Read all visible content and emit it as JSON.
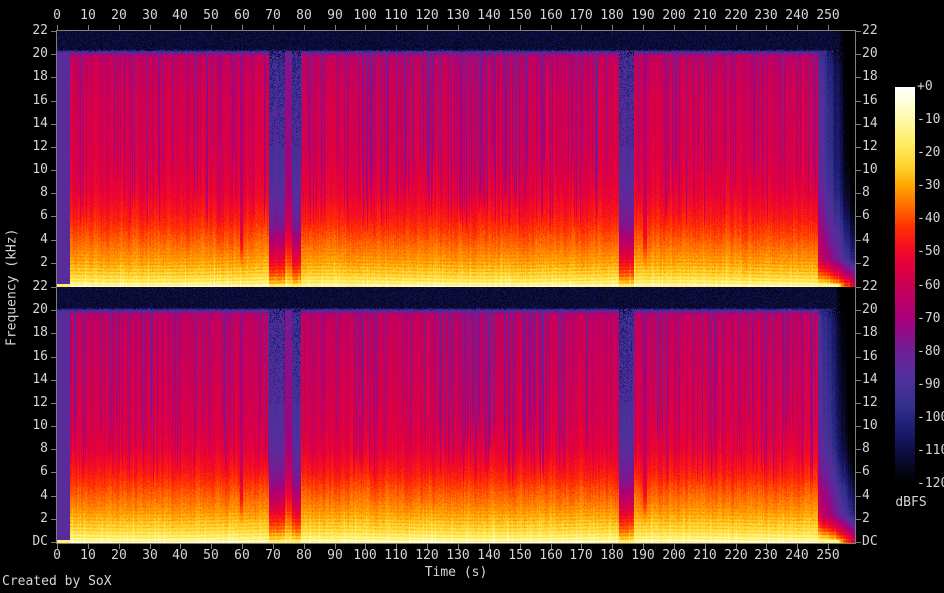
{
  "meta": {
    "creator": "Created by SoX"
  },
  "chart_data": {
    "type": "heatmap",
    "subtype": "audio-spectrogram-stereo",
    "title": "",
    "xlabel": "Time (s)",
    "ylabel": "Frequency (kHz)",
    "panels": [
      "channel-1-top",
      "channel-2-bottom"
    ],
    "x_range_s": [
      0,
      258
    ],
    "x_ticks": [
      0,
      10,
      20,
      30,
      40,
      50,
      60,
      70,
      80,
      90,
      100,
      110,
      120,
      130,
      140,
      150,
      160,
      170,
      180,
      190,
      200,
      210,
      220,
      230,
      240,
      250
    ],
    "y_range_khz": [
      0,
      22
    ],
    "y_tick_values_khz": [
      22,
      20,
      18,
      16,
      14,
      12,
      10,
      8,
      6,
      4,
      2
    ],
    "y_dc_label": "DC",
    "colorbar": {
      "unit": "dBFS",
      "range_db": [
        0,
        -120
      ],
      "ticks": [
        "+0",
        "-10",
        "-20",
        "-30",
        "-40",
        "-50",
        "-60",
        "-70",
        "-80",
        "-90",
        "-100",
        "-110",
        "-120"
      ]
    },
    "legend_position": "right",
    "grid": false,
    "features": [
      "near-silent intro ~0-4 s (floor ~ -86 dBFS)",
      "continuous broadband music ~4-247 s, lowpassed near 20.3 kHz",
      "quiet breaks ~68.5-79 s (split by a short burst ~74-76 s) and ~182-187 s",
      "brief dips near 59 s and 190 s",
      "fade-out from ~247 s to end of file",
      "bright full-scale low-frequency/DC line along the bottom of each channel",
      "energy decreases with frequency: ~-10 dBFS near DC to ~-60 dBFS near 19 kHz"
    ]
  },
  "render": {
    "seed": 1337,
    "duration_s": 258.7,
    "stripe_p": 0.17,
    "texture_ranges": [
      {
        "t0": 133,
        "t1": 158,
        "p": 0.5
      },
      {
        "t0": 96,
        "t1": 133,
        "p": 0.28
      }
    ],
    "cutoff_khz": [
      20.45,
      20.25
    ],
    "profiles": [
      [
        [
          0,
          -10
        ],
        [
          0.4,
          -17
        ],
        [
          1,
          -24
        ],
        [
          2,
          -30
        ],
        [
          3,
          -34
        ],
        [
          4.5,
          -40
        ],
        [
          6,
          -46
        ],
        [
          8,
          -52
        ],
        [
          10,
          -55
        ],
        [
          13,
          -57
        ],
        [
          16,
          -58
        ],
        [
          19,
          -61
        ],
        [
          20.1,
          -64
        ],
        [
          22,
          -64
        ]
      ],
      [
        [
          0,
          -9
        ],
        [
          0.4,
          -15
        ],
        [
          1,
          -22
        ],
        [
          2,
          -28
        ],
        [
          3,
          -33
        ],
        [
          4.5,
          -39
        ],
        [
          6,
          -46
        ],
        [
          8,
          -53
        ],
        [
          10,
          -56
        ],
        [
          13,
          -58
        ],
        [
          16,
          -60
        ],
        [
          19,
          -62
        ],
        [
          20.1,
          -66
        ],
        [
          22,
          -66
        ]
      ]
    ],
    "segments": [
      {
        "t0": 0,
        "t1": 4.2,
        "type": "intro",
        "s": 1
      },
      {
        "t0": 59.2,
        "t1": 60.2,
        "type": "dip",
        "s": 0.9
      },
      {
        "t0": 68.6,
        "t1": 73.8,
        "type": "quiet",
        "s": 1
      },
      {
        "t0": 73.8,
        "t1": 75.9,
        "type": "quiet",
        "s": 0.45
      },
      {
        "t0": 75.9,
        "t1": 78.9,
        "type": "quiet",
        "s": 1
      },
      {
        "t0": 182,
        "t1": 187,
        "type": "quiet",
        "s": 1
      },
      {
        "t0": 189.8,
        "t1": 191.2,
        "type": "dip",
        "s": 0.8
      },
      {
        "t0": 246.5,
        "t1": 258.7,
        "type": "fade",
        "s": 1
      }
    ],
    "palette_stops": [
      [
        0,
        "#ffffff"
      ],
      [
        -4,
        "#ffffdf"
      ],
      [
        -10,
        "#fff8a6"
      ],
      [
        -17,
        "#ffec62"
      ],
      [
        -24,
        "#ffd22e"
      ],
      [
        -30,
        "#ffa300"
      ],
      [
        -36,
        "#ff6d00"
      ],
      [
        -42,
        "#ff3300"
      ],
      [
        -48,
        "#f50f1e"
      ],
      [
        -54,
        "#e2003e"
      ],
      [
        -62,
        "#c3005d"
      ],
      [
        -70,
        "#a8007a"
      ],
      [
        -80,
        "#6e1f96"
      ],
      [
        -88,
        "#52309c"
      ],
      [
        -96,
        "#35308e"
      ],
      [
        -103,
        "#1d1d74"
      ],
      [
        -110,
        "#0e0e46"
      ],
      [
        -116,
        "#050518"
      ],
      [
        -120,
        "#000000"
      ]
    ],
    "axis_color": "#7f7f7f",
    "label_color": "#d6d6d6"
  }
}
